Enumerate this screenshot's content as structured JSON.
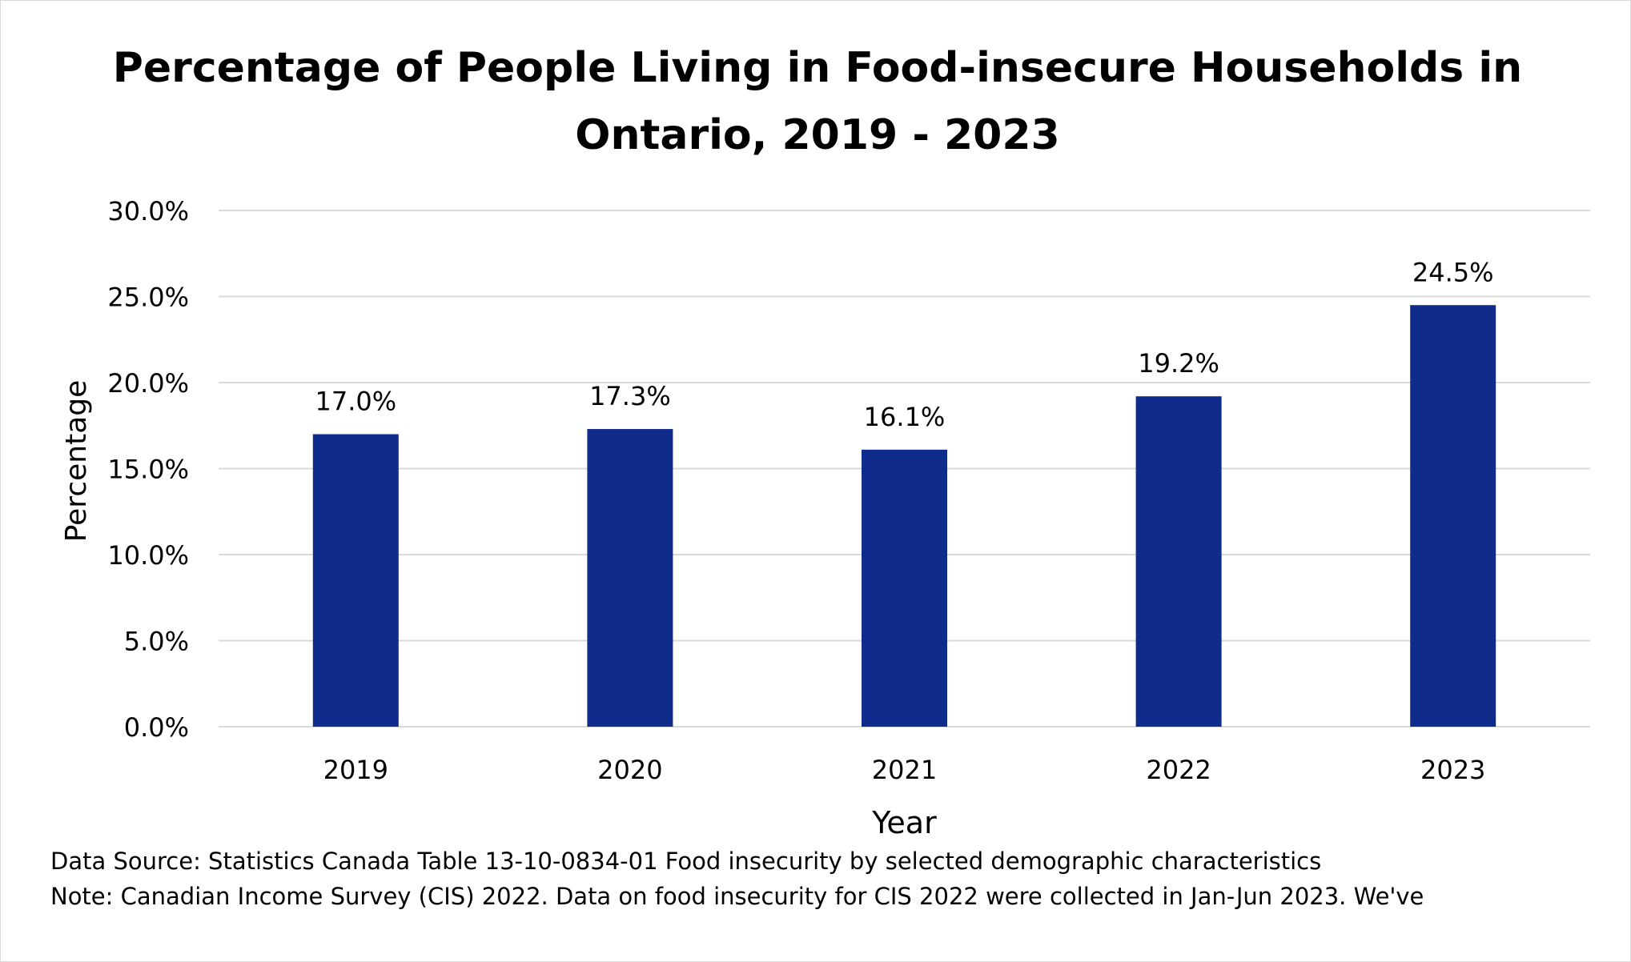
{
  "chart_data": {
    "type": "bar",
    "title_lines": [
      "Percentage of People Living in Food-insecure Households in",
      "Ontario, 2019 - 2023"
    ],
    "categories": [
      "2019",
      "2020",
      "2021",
      "2022",
      "2023"
    ],
    "values": [
      17.0,
      17.3,
      16.1,
      19.2,
      24.5
    ],
    "data_labels": [
      "17.0%",
      "17.3%",
      "16.1%",
      "19.2%",
      "24.5%"
    ],
    "xlabel": "Year",
    "ylabel": "Percentage",
    "ylim": [
      0,
      30
    ],
    "yticks": [
      0,
      5,
      10,
      15,
      20,
      25,
      30
    ],
    "ytick_labels": [
      "0.0%",
      "5.0%",
      "10.0%",
      "15.0%",
      "20.0%",
      "25.0%",
      "30.0%"
    ],
    "grid": true,
    "bar_color": "#0F2B8C",
    "grid_color": "#D9D9D9"
  },
  "footer": {
    "source": "Data Source: Statistics Canada Table 13-10-0834-01 Food insecurity by selected demographic characteristics",
    "note": "Note: Canadian Income Survey (CIS) 2022. Data on food insecurity for CIS 2022 were collected in Jan-Jun 2023. We've"
  }
}
